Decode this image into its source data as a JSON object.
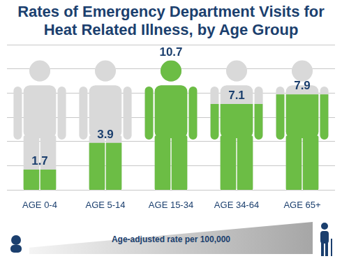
{
  "chart_data": {
    "type": "bar",
    "title": "Rates of Emergency Department Visits for Heat Related Illness, by Age Group",
    "annotation": "Age-adjusted rate per 100,000",
    "categories": [
      "AGE 0-4",
      "AGE 5-14",
      "AGE 15-34",
      "AGE 34-64",
      "AGE 65+"
    ],
    "values": [
      1.7,
      3.9,
      10.7,
      7.1,
      7.9
    ],
    "color": "#6cbd45",
    "ylim": [
      0,
      12
    ],
    "yticks": [
      0,
      2,
      4,
      6,
      8,
      10,
      12
    ],
    "grid": true,
    "data_labels": true,
    "tick_labels": "x"
  }
}
